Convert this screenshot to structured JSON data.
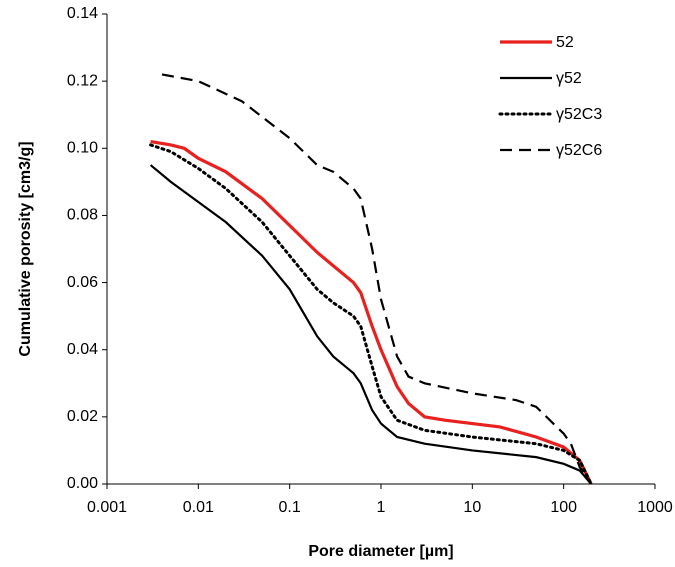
{
  "chart_data": {
    "type": "line",
    "x_label": "Pore diameter [µm]",
    "y_label": "Cumulative porosity [cm3/g]",
    "x_scale": "log",
    "xlim": [
      0.001,
      1000
    ],
    "xticks": [
      0.001,
      0.01,
      0.1,
      1,
      10,
      100,
      1000
    ],
    "ylim": [
      0,
      0.14
    ],
    "yticks": [
      {
        "value": 0,
        "label": "0.00"
      },
      0.02,
      0.04,
      0.06,
      0.08,
      {
        "value": 0.1,
        "label": "0.10"
      },
      0.12,
      0.14
    ],
    "grid": false,
    "legend": "top-right",
    "series": [
      {
        "name": "52",
        "color": "#e8211f",
        "dash": "solid",
        "x": [
          0.003,
          0.005,
          0.007,
          0.01,
          0.02,
          0.05,
          0.1,
          0.2,
          0.3,
          0.5,
          0.6,
          0.8,
          1,
          1.5,
          2,
          3,
          5,
          10,
          20,
          50,
          100,
          150,
          200
        ],
        "values": [
          0.102,
          0.101,
          0.1,
          0.097,
          0.093,
          0.085,
          0.077,
          0.069,
          0.065,
          0.06,
          0.057,
          0.047,
          0.04,
          0.029,
          0.024,
          0.02,
          0.019,
          0.018,
          0.017,
          0.014,
          0.011,
          0.007,
          0
        ]
      },
      {
        "name": "γ52",
        "color": "#000000",
        "dash": "solid",
        "x": [
          0.003,
          0.005,
          0.01,
          0.02,
          0.05,
          0.1,
          0.2,
          0.3,
          0.5,
          0.6,
          0.8,
          1,
          1.5,
          3,
          10,
          50,
          100,
          150,
          200
        ],
        "values": [
          0.095,
          0.09,
          0.084,
          0.078,
          0.068,
          0.058,
          0.044,
          0.038,
          0.033,
          0.03,
          0.022,
          0.018,
          0.014,
          0.012,
          0.01,
          0.008,
          0.006,
          0.004,
          0
        ]
      },
      {
        "name": "γ52C3",
        "color": "#000000",
        "dash": "dotted",
        "x": [
          0.003,
          0.005,
          0.01,
          0.02,
          0.05,
          0.1,
          0.2,
          0.3,
          0.5,
          0.6,
          0.8,
          1,
          1.5,
          3,
          10,
          50,
          100,
          150,
          200
        ],
        "values": [
          0.101,
          0.099,
          0.094,
          0.088,
          0.078,
          0.068,
          0.058,
          0.054,
          0.05,
          0.047,
          0.035,
          0.026,
          0.019,
          0.016,
          0.014,
          0.012,
          0.01,
          0.007,
          0
        ]
      },
      {
        "name": "γ52C6",
        "color": "#000000",
        "dash": "dashed",
        "x": [
          0.004,
          0.01,
          0.03,
          0.1,
          0.2,
          0.3,
          0.5,
          0.6,
          0.8,
          1,
          1.5,
          2,
          3,
          10,
          30,
          50,
          100,
          120,
          150,
          200
        ],
        "values": [
          0.122,
          0.12,
          0.114,
          0.103,
          0.095,
          0.093,
          0.088,
          0.085,
          0.07,
          0.055,
          0.038,
          0.032,
          0.03,
          0.027,
          0.025,
          0.023,
          0.015,
          0.012,
          0.005,
          0
        ]
      }
    ]
  }
}
